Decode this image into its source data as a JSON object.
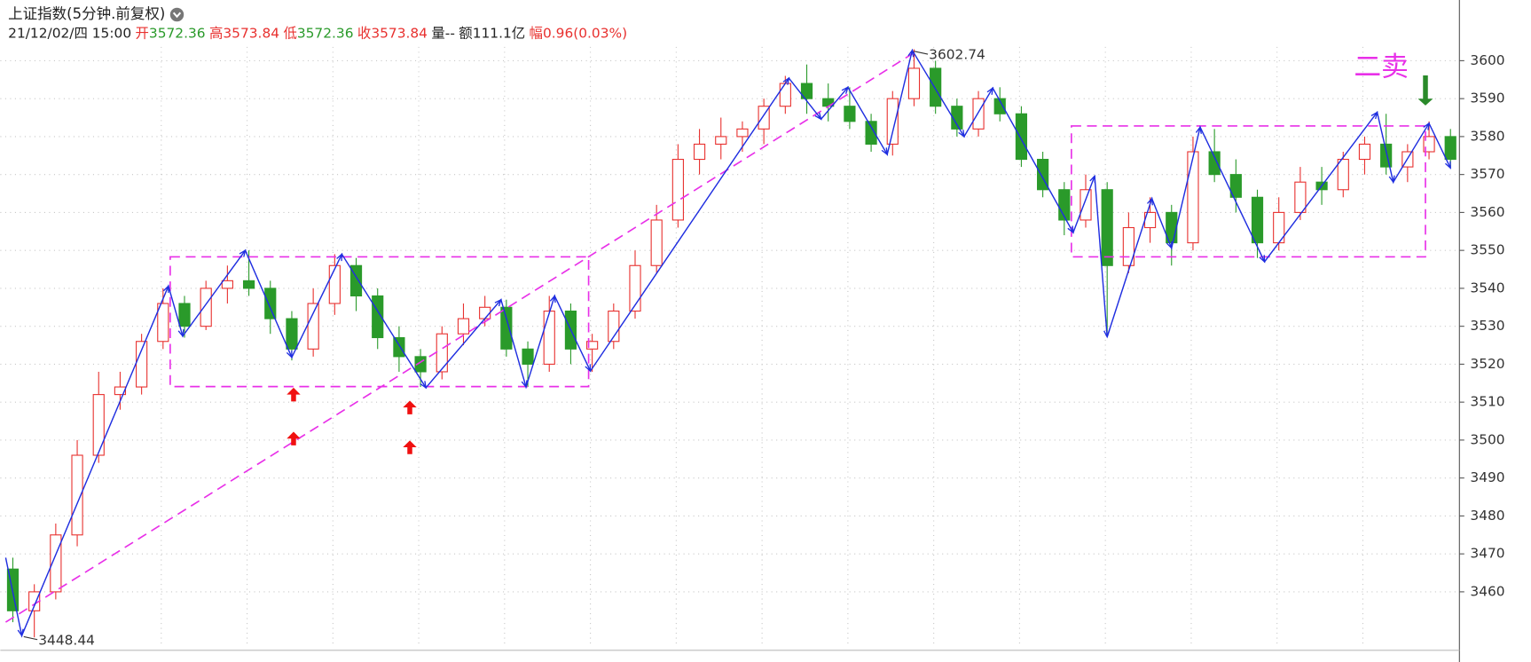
{
  "header": {
    "title": "上证指数(5分钟.前复权)",
    "datetime": "21/12/02/四 15:00",
    "fields": [
      {
        "label": "开",
        "value": "3572.36",
        "label_color": "#e8312f",
        "value_color": "#2a9a2a"
      },
      {
        "label": "高",
        "value": "3573.84",
        "label_color": "#e8312f",
        "value_color": "#e8312f"
      },
      {
        "label": "低",
        "value": "3572.36",
        "label_color": "#e8312f",
        "value_color": "#2a9a2a"
      },
      {
        "label": "收",
        "value": "3573.84",
        "label_color": "#e8312f",
        "value_color": "#e8312f"
      },
      {
        "label": "量",
        "value": "--",
        "label_color": "#222222",
        "value_color": "#222222"
      },
      {
        "label": "额",
        "value": "111.1亿",
        "label_color": "#222222",
        "value_color": "#222222"
      },
      {
        "label": "幅",
        "value": "0.96(0.03%)",
        "label_color": "#e8312f",
        "value_color": "#e8312f"
      }
    ]
  },
  "chart_data": {
    "type": "candlestick",
    "xlim": [
      -3,
      813
    ],
    "ylim": [
      3441.5,
      3616
    ],
    "yticks": [
      3460,
      3470,
      3480,
      3490,
      3500,
      3510,
      3520,
      3530,
      3540,
      3550,
      3560,
      3570,
      3580,
      3590,
      3600
    ],
    "xticks": [
      87,
      135,
      183,
      231,
      279,
      327,
      375,
      423,
      471,
      519,
      567,
      615,
      663,
      711,
      759
    ],
    "grid": true,
    "up_color": "#e8312f",
    "down_color": "#2a9a2a",
    "x": [
      4,
      16,
      28,
      40,
      52,
      64,
      76,
      88,
      100,
      112,
      124,
      136,
      148,
      160,
      172,
      184,
      196,
      208,
      220,
      232,
      244,
      256,
      268,
      280,
      292,
      304,
      316,
      328,
      340,
      352,
      364,
      376,
      388,
      400,
      412,
      424,
      436,
      448,
      460,
      472,
      484,
      496,
      508,
      520,
      532,
      544,
      556,
      568,
      580,
      592,
      604,
      616,
      628,
      640,
      652,
      664,
      676,
      688,
      700,
      712,
      724,
      736,
      748,
      760,
      772,
      784,
      796,
      808
    ],
    "open": [
      3466,
      3455,
      3460,
      3475,
      3496,
      3512,
      3514,
      3526,
      3536,
      3530,
      3540,
      3542,
      3540,
      3532,
      3524,
      3536,
      3546,
      3538,
      3527,
      3522,
      3518,
      3528,
      3532,
      3535,
      3524,
      3520,
      3534,
      3524,
      3526,
      3534,
      3546,
      3558,
      3574,
      3578,
      3580,
      3582,
      3588,
      3594,
      3590,
      3588,
      3584,
      3578,
      3590,
      3598,
      3588,
      3582,
      3590,
      3586,
      3574,
      3566,
      3558,
      3566,
      3546,
      3556,
      3560,
      3552,
      3576,
      3570,
      3564,
      3552,
      3560,
      3568,
      3566,
      3574,
      3578,
      3572,
      3576,
      3580
    ],
    "high": [
      3469,
      3462,
      3478,
      3500,
      3518,
      3518,
      3528,
      3540,
      3538,
      3542,
      3546,
      3550,
      3542,
      3534,
      3540,
      3549,
      3548,
      3540,
      3530,
      3524,
      3530,
      3536,
      3538,
      3537,
      3526,
      3538,
      3536,
      3528,
      3536,
      3550,
      3562,
      3578,
      3582,
      3585,
      3584,
      3590,
      3596,
      3599,
      3594,
      3593,
      3586,
      3592,
      3603,
      3600,
      3590,
      3592,
      3593,
      3588,
      3576,
      3568,
      3570,
      3568,
      3560,
      3564,
      3562,
      3580,
      3582,
      3574,
      3566,
      3564,
      3572,
      3572,
      3576,
      3580,
      3586,
      3578,
      3584,
      3582
    ],
    "low": [
      3452,
      3448,
      3458,
      3472,
      3494,
      3508,
      3512,
      3524,
      3527,
      3529,
      3536,
      3538,
      3528,
      3521,
      3522,
      3533,
      3534,
      3524,
      3518,
      3514,
      3516,
      3525,
      3530,
      3522,
      3514,
      3518,
      3520,
      3518,
      3524,
      3532,
      3544,
      3556,
      3570,
      3574,
      3576,
      3578,
      3586,
      3586,
      3584,
      3582,
      3576,
      3575,
      3588,
      3586,
      3580,
      3580,
      3584,
      3572,
      3564,
      3554,
      3556,
      3528,
      3544,
      3552,
      3546,
      3550,
      3568,
      3560,
      3548,
      3550,
      3558,
      3562,
      3564,
      3570,
      3570,
      3568,
      3574,
      3572
    ],
    "close": [
      3455,
      3460,
      3475,
      3496,
      3512,
      3514,
      3526,
      3536,
      3530,
      3540,
      3542,
      3540,
      3532,
      3524,
      3536,
      3546,
      3538,
      3527,
      3522,
      3518,
      3528,
      3532,
      3535,
      3524,
      3520,
      3534,
      3524,
      3526,
      3534,
      3546,
      3558,
      3574,
      3578,
      3580,
      3582,
      3588,
      3594,
      3590,
      3588,
      3584,
      3578,
      3590,
      3598,
      3588,
      3582,
      3590,
      3586,
      3574,
      3566,
      3558,
      3566,
      3546,
      3556,
      3560,
      3552,
      3576,
      3570,
      3564,
      3552,
      3560,
      3568,
      3566,
      3574,
      3578,
      3572,
      3576,
      3580,
      3574
    ],
    "zigzag": {
      "color": "#1f2ee0",
      "x": [
        0,
        9,
        91,
        99,
        134,
        160,
        188,
        235,
        277,
        291,
        307,
        327,
        438,
        456,
        471,
        493,
        507,
        536,
        552,
        597,
        609,
        616,
        641,
        652,
        668,
        704,
        767,
        776,
        796,
        808
      ],
      "y": [
        3469,
        3448.44,
        3540.6,
        3527.4,
        3550,
        3521.8,
        3549,
        3513.8,
        3537,
        3514,
        3538,
        3518.2,
        3595.4,
        3584.6,
        3593,
        3575.3,
        3602.74,
        3580,
        3592.8,
        3554.7,
        3569.6,
        3527.2,
        3563.7,
        3550.6,
        3582.5,
        3547,
        3586.4,
        3568,
        3583.5,
        3571.7
      ]
    },
    "dash_color": "#e830e8",
    "boxes": [
      {
        "x": [
          92,
          326
        ],
        "y": [
          3514.1,
          3548.3
        ]
      },
      {
        "x": [
          596,
          794
        ],
        "y": [
          3548.3,
          3582.8
        ]
      }
    ],
    "trendline": {
      "x": [
        0,
        507
      ],
      "y": [
        3452,
        3601.8
      ]
    },
    "annotations": [
      {
        "label": "3602.74",
        "x": 507,
        "y": 3602.74
      },
      {
        "label": "3448.44",
        "x": 9,
        "y": 3448.44
      }
    ],
    "callout": {
      "text": "二卖",
      "x": 754,
      "y": 3598,
      "color": "#e830e8"
    },
    "markers": [
      {
        "x": 161,
        "y": 3513.8,
        "dir": "up",
        "color": "#f01010"
      },
      {
        "x": 161,
        "y": 3502.2,
        "dir": "up",
        "color": "#f01010"
      },
      {
        "x": 226,
        "y": 3510.4,
        "dir": "up",
        "color": "#f01010"
      },
      {
        "x": 226,
        "y": 3499.9,
        "dir": "up",
        "color": "#f01010"
      },
      {
        "x": 794,
        "y": 3588.2,
        "dir": "down",
        "color": "#2a8a2a"
      }
    ]
  }
}
